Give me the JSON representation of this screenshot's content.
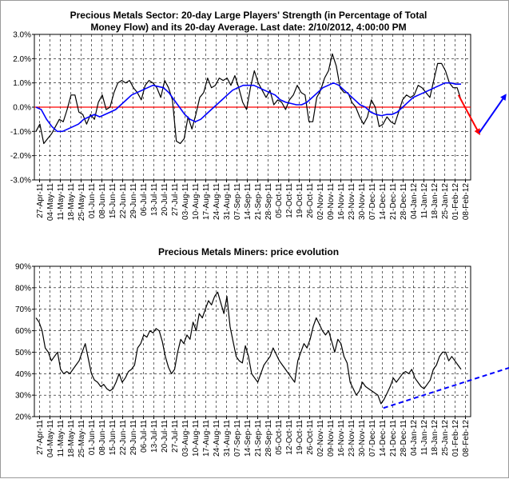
{
  "chart_data": [
    {
      "type": "line",
      "title": "Precious Metals Sector: 20-day Large Players' Strength (in Percentage of Total Money Flow) and its 20-day Average. Last date: 2/10/2012, 4:00:00 PM",
      "title_lines": [
        "Precious Metals Sector: 20-day Large Players' Strength (in Percentage of Total",
        "Money Flow) and its 20-day Average. Last date: 2/10/2012, 4:00:00 PM"
      ],
      "ylim": [
        -3.0,
        3.0
      ],
      "y_ticks": [
        {
          "value": 3.0,
          "label": "3.0%"
        },
        {
          "value": 2.0,
          "label": "2.0%"
        },
        {
          "value": 1.0,
          "label": "1.0%"
        },
        {
          "value": 0.0,
          "label": "0.0%"
        },
        {
          "value": -1.0,
          "label": "-1.0%"
        },
        {
          "value": -2.0,
          "label": "-2.0%"
        },
        {
          "value": -3.0,
          "label": "-3.0%"
        }
      ],
      "x_ticks": [
        "27-Apr-11",
        "04-May-11",
        "11-May-11",
        "18-May-11",
        "25-May-11",
        "01-Jun-11",
        "08-Jun-11",
        "15-Jun-11",
        "22-Jun-11",
        "29-Jun-11",
        "06-Jul-11",
        "13-Jul-11",
        "20-Jul-11",
        "27-Jul-11",
        "03-Aug-11",
        "10-Aug-11",
        "17-Aug-11",
        "24-Aug-11",
        "31-Aug-11",
        "07-Sep-11",
        "14-Sep-11",
        "21-Sep-11",
        "28-Sep-11",
        "05-Oct-11",
        "12-Oct-11",
        "19-Oct-11",
        "26-Oct-11",
        "02-Nov-11",
        "09-Nov-11",
        "16-Nov-11",
        "23-Nov-11",
        "30-Nov-11",
        "07-Dec-11",
        "14-Dec-11",
        "21-Dec-11",
        "28-Dec-11",
        "04-Jan-12",
        "11-Jan-12",
        "18-Jan-12",
        "25-Jan-12",
        "01-Feb-12",
        "08-Feb-12"
      ],
      "grid": true,
      "zero_line_color": "#ff0000",
      "series": [
        {
          "color": "#000000",
          "values": [
            -1.0,
            -0.7,
            -1.5,
            -1.3,
            -1.1,
            -0.8,
            -0.5,
            -0.6,
            -0.1,
            0.5,
            0.5,
            -0.2,
            -0.3,
            -0.7,
            -0.3,
            -0.5,
            0.2,
            0.5,
            -0.1,
            0.0,
            0.6,
            1.0,
            1.1,
            1.0,
            1.1,
            0.8,
            0.6,
            0.3,
            0.9,
            1.1,
            1.0,
            0.8,
            0.4,
            1.1,
            0.8,
            0.3,
            -1.4,
            -1.5,
            -1.3,
            -0.4,
            -0.9,
            -0.3,
            0.4,
            0.6,
            1.2,
            0.8,
            0.9,
            1.2,
            1.1,
            1.2,
            0.9,
            1.3,
            0.8,
            0.2,
            -0.1,
            0.8,
            1.5,
            1.0,
            0.7,
            0.4,
            0.7,
            0.1,
            0.3,
            0.2,
            -0.1,
            0.3,
            0.5,
            0.9,
            0.6,
            0.5,
            -0.6,
            -0.6,
            0.4,
            0.7,
            1.2,
            1.5,
            2.2,
            1.7,
            0.8,
            0.6,
            0.6,
            0.2,
            0.0,
            -0.4,
            -0.7,
            -0.4,
            0.3,
            0.0,
            -0.8,
            -0.7,
            -0.4,
            -0.6,
            -0.7,
            -0.2,
            0.3,
            0.5,
            0.4,
            0.5,
            0.9,
            0.8,
            0.6,
            0.4,
            1.1,
            1.8,
            1.8,
            1.5,
            1.0,
            0.8,
            0.8,
            0.3
          ]
        },
        {
          "color": "#0000ff",
          "values": [
            0.0,
            -0.1,
            -0.5,
            -0.8,
            -1.0,
            -1.0,
            -0.9,
            -0.8,
            -0.7,
            -0.5,
            -0.4,
            -0.3,
            -0.4,
            -0.3,
            -0.2,
            -0.1,
            0.1,
            0.3,
            0.5,
            0.6,
            0.7,
            0.8,
            0.9,
            0.85,
            0.8,
            0.6,
            0.3,
            0.0,
            -0.3,
            -0.5,
            -0.6,
            -0.5,
            -0.3,
            -0.1,
            0.1,
            0.3,
            0.5,
            0.7,
            0.8,
            0.9,
            0.9,
            0.9,
            0.8,
            0.7,
            0.6,
            0.5,
            0.3,
            0.2,
            0.15,
            0.1,
            0.1,
            0.2,
            0.4,
            0.6,
            0.8,
            0.9,
            1.0,
            0.9,
            0.7,
            0.5,
            0.3,
            0.1,
            0.0,
            -0.2,
            -0.3,
            -0.35,
            -0.3,
            -0.3,
            -0.2,
            0.0,
            0.2,
            0.4,
            0.5,
            0.6,
            0.7,
            0.8,
            0.9,
            1.0,
            1.0,
            0.95,
            0.95
          ]
        }
      ],
      "annotations": [
        {
          "type": "arrow",
          "color": "#ff0000",
          "from_x_frac": 0.972,
          "from_y": 0.5,
          "to_x_frac": 1.02,
          "to_y": -1.1
        },
        {
          "type": "arrow",
          "color": "#0000ff",
          "from_x_frac": 1.02,
          "from_y": -1.05,
          "to_x_frac": 1.08,
          "to_y": 0.5
        }
      ]
    },
    {
      "type": "line",
      "title": "Precious Metals Miners: price evolution",
      "ylim": [
        20,
        90
      ],
      "y_ticks": [
        {
          "value": 90,
          "label": "90%"
        },
        {
          "value": 80,
          "label": "80%"
        },
        {
          "value": 70,
          "label": "70%"
        },
        {
          "value": 60,
          "label": "60%"
        },
        {
          "value": 50,
          "label": "50%"
        },
        {
          "value": 40,
          "label": "40%"
        },
        {
          "value": 30,
          "label": "30%"
        },
        {
          "value": 20,
          "label": "20%"
        }
      ],
      "x_ticks": [
        "27-Apr-11",
        "04-May-11",
        "11-May-11",
        "18-May-11",
        "25-May-11",
        "01-Jun-11",
        "08-Jun-11",
        "15-Jun-11",
        "22-Jun-11",
        "29-Jun-11",
        "06-Jul-11",
        "13-Jul-11",
        "20-Jul-11",
        "27-Jul-11",
        "03-Aug-11",
        "10-Aug-11",
        "17-Aug-11",
        "24-Aug-11",
        "31-Aug-11",
        "07-Sep-11",
        "14-Sep-11",
        "21-Sep-11",
        "28-Sep-11",
        "05-Oct-11",
        "12-Oct-11",
        "19-Oct-11",
        "26-Oct-11",
        "02-Nov-11",
        "09-Nov-11",
        "16-Nov-11",
        "23-Nov-11",
        "30-Nov-11",
        "07-Dec-11",
        "14-Dec-11",
        "21-Dec-11",
        "28-Dec-11",
        "04-Jan-12",
        "11-Jan-12",
        "18-Jan-12",
        "25-Jan-12",
        "01-Feb-12",
        "08-Feb-12"
      ],
      "grid": true,
      "series": [
        {
          "color": "#000000",
          "values": [
            66,
            64,
            60,
            52,
            50,
            46,
            48,
            50,
            42,
            40,
            41,
            40,
            42,
            44,
            46,
            50,
            54,
            47,
            40,
            37,
            36,
            34,
            35,
            33,
            32,
            33,
            36,
            40,
            36,
            38,
            41,
            42,
            44,
            52,
            54,
            58,
            57,
            60,
            59,
            61,
            60,
            55,
            48,
            43,
            40,
            42,
            50,
            56,
            54,
            58,
            56,
            64,
            60,
            68,
            66,
            70,
            74,
            72,
            76,
            78,
            73,
            68,
            76,
            62,
            55,
            48,
            46,
            45,
            53,
            48,
            40,
            38,
            36,
            40,
            44,
            46,
            48,
            52,
            49,
            46,
            44,
            42,
            40,
            38,
            36,
            46,
            50,
            54,
            52,
            56,
            62,
            66,
            63,
            60,
            58,
            60,
            55,
            50,
            56,
            54,
            48,
            45,
            36,
            33,
            30,
            32,
            36,
            34,
            33,
            32,
            31,
            30,
            26,
            28,
            31,
            34,
            38,
            36,
            38,
            40,
            41,
            40,
            42,
            38,
            36,
            34,
            33,
            35,
            37,
            42,
            44,
            48,
            50,
            50,
            46,
            48,
            46,
            44,
            42
          ]
        }
      ],
      "annotations": [
        {
          "type": "dashed-trendline",
          "color": "#0000ff",
          "from_x_frac": 0.8,
          "from_y": 24,
          "to_x_frac": 1.1,
          "to_y": 43.5
        }
      ]
    }
  ]
}
